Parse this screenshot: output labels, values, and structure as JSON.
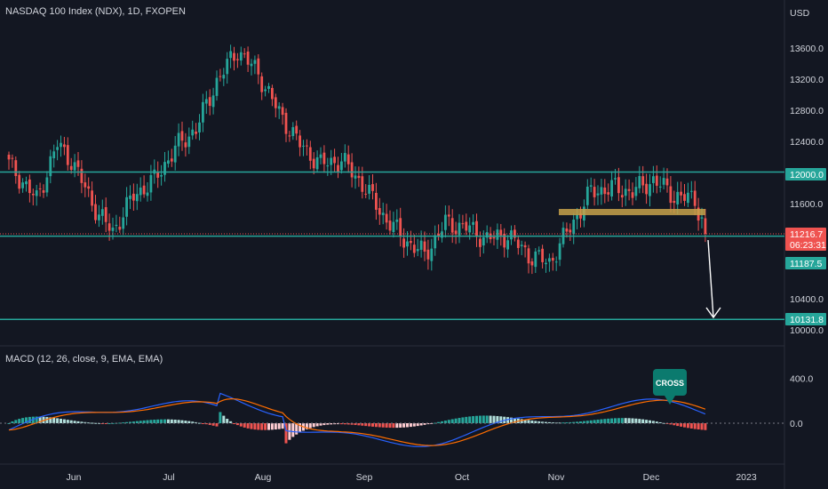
{
  "header": {
    "symbol_title": "NASDAQ 100 Index (NDX), 1D, FXOPEN"
  },
  "price_axis": {
    "currency": "USD",
    "ticks": [
      "13600.0",
      "13200.0",
      "12800.0",
      "12400.0",
      "12000.0",
      "11600.0",
      "10400.0",
      "10000.0"
    ]
  },
  "price_tags": {
    "last_price": "11216.7",
    "countdown": "06:23:31",
    "line_level": "11187.5",
    "resistance": "12000.0",
    "target": "10131.8"
  },
  "macd": {
    "title": "MACD (12, 26, close, 9, EMA, EMA)",
    "ticks": [
      "400.0",
      "0.0"
    ],
    "annotation": "CROSS"
  },
  "time_axis": {
    "labels": [
      "Jun",
      "Jul",
      "Aug",
      "Sep",
      "Oct",
      "Nov",
      "Dec",
      "2023"
    ]
  },
  "colors": {
    "background": "#131722",
    "up": "#26a69a",
    "down": "#ef5350",
    "level_line": "#26a69a",
    "zone": "#c8a24a",
    "macd_line": "#2962ff",
    "signal_line": "#ff6d00"
  },
  "chart_data": {
    "type": "candlestick",
    "levels": [
      12000.0,
      11187.5,
      10131.8
    ],
    "last_price": 11216.7,
    "macd_range": [
      -250,
      450
    ],
    "price_range": [
      10000,
      13800
    ],
    "anchors_close": [
      [
        0,
        12100
      ],
      [
        8,
        11650
      ],
      [
        14,
        12350
      ],
      [
        18,
        12150
      ],
      [
        26,
        11450
      ],
      [
        30,
        11250
      ],
      [
        36,
        11700
      ],
      [
        42,
        11900
      ],
      [
        48,
        12300
      ],
      [
        54,
        12550
      ],
      [
        60,
        13150
      ],
      [
        66,
        13550
      ],
      [
        72,
        13250
      ],
      [
        78,
        12750
      ],
      [
        84,
        12350
      ],
      [
        90,
        12100
      ],
      [
        96,
        12150
      ],
      [
        102,
        11850
      ],
      [
        108,
        11450
      ],
      [
        114,
        11150
      ],
      [
        120,
        10950
      ],
      [
        126,
        11350
      ],
      [
        132,
        11300
      ],
      [
        138,
        11150
      ],
      [
        144,
        11200
      ],
      [
        150,
        10950
      ],
      [
        156,
        10850
      ],
      [
        162,
        11300
      ],
      [
        168,
        11750
      ],
      [
        174,
        11800
      ],
      [
        180,
        11750
      ],
      [
        186,
        11900
      ],
      [
        192,
        11700
      ],
      [
        198,
        11650
      ],
      [
        200,
        11400
      ],
      [
        201,
        11216.7
      ]
    ]
  }
}
